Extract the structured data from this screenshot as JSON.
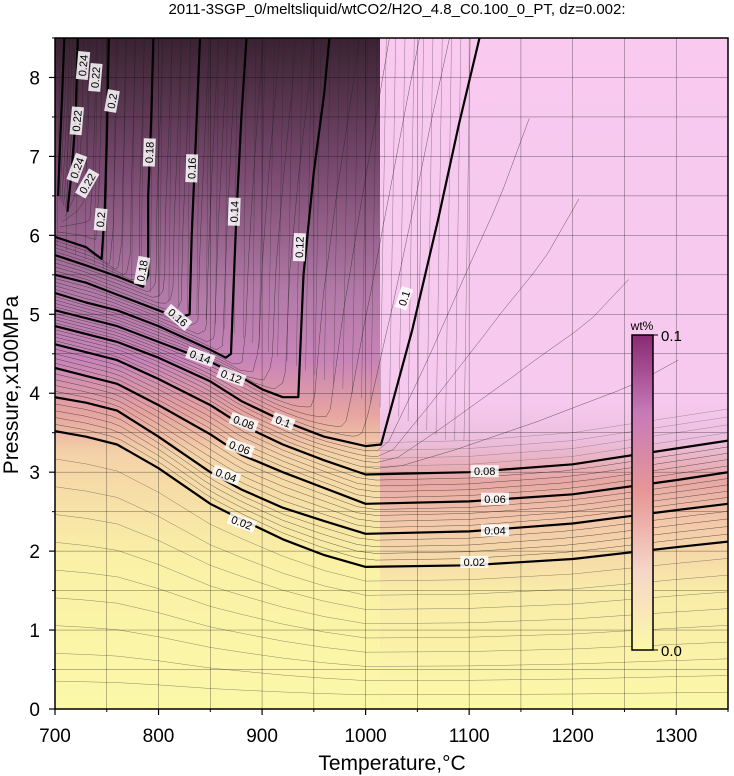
{
  "chart_data": {
    "type": "contour",
    "title": "2011-3SGP_0/meltsliquid/wtCO2/H2O_4.8_C0.100_0_PT, dz=0.002:",
    "xlabel": "Temperature,°C",
    "ylabel": "Pressure,x100MPa",
    "xlim": [
      700,
      1350
    ],
    "ylim": [
      0,
      8.5
    ],
    "xticks": [
      700,
      800,
      900,
      1000,
      1100,
      1200,
      1300
    ],
    "yticks": [
      0,
      1,
      2,
      3,
      4,
      5,
      6,
      7,
      8
    ],
    "grid": true,
    "colorbar": {
      "label": "wt%",
      "min_label": "0.0",
      "max_label": "0.1",
      "range": [
        0,
        0.1
      ],
      "colors": [
        "#fbf8a8",
        "#f6d6c8",
        "#e79796",
        "#c87ab8",
        "#8a2a72"
      ]
    },
    "contours": [
      {
        "level": "0.02",
        "points": [
          [
            700,
            3.52
          ],
          [
            730,
            3.45
          ],
          [
            760,
            3.35
          ],
          [
            800,
            3.05
          ],
          [
            850,
            2.6
          ],
          [
            880,
            2.4
          ],
          [
            920,
            2.15
          ],
          [
            960,
            1.95
          ],
          [
            1000,
            1.8
          ],
          [
            1100,
            1.82
          ],
          [
            1200,
            1.9
          ],
          [
            1300,
            2.05
          ],
          [
            1350,
            2.12
          ]
        ]
      },
      {
        "level": "0.04",
        "points": [
          [
            700,
            3.95
          ],
          [
            730,
            3.88
          ],
          [
            760,
            3.78
          ],
          [
            800,
            3.45
          ],
          [
            850,
            3.0
          ],
          [
            880,
            2.78
          ],
          [
            920,
            2.55
          ],
          [
            960,
            2.38
          ],
          [
            1000,
            2.22
          ],
          [
            1100,
            2.25
          ],
          [
            1200,
            2.35
          ],
          [
            1300,
            2.52
          ],
          [
            1350,
            2.6
          ]
        ]
      },
      {
        "level": "0.06",
        "points": [
          [
            700,
            4.32
          ],
          [
            730,
            4.22
          ],
          [
            760,
            4.12
          ],
          [
            800,
            3.85
          ],
          [
            850,
            3.48
          ],
          [
            880,
            3.22
          ],
          [
            920,
            3.0
          ],
          [
            960,
            2.8
          ],
          [
            1000,
            2.6
          ],
          [
            1100,
            2.63
          ],
          [
            1200,
            2.72
          ],
          [
            1300,
            2.9
          ],
          [
            1350,
            3.0
          ]
        ]
      },
      {
        "level": "0.08",
        "points": [
          [
            700,
            4.62
          ],
          [
            730,
            4.52
          ],
          [
            760,
            4.42
          ],
          [
            800,
            4.18
          ],
          [
            850,
            3.85
          ],
          [
            880,
            3.6
          ],
          [
            920,
            3.35
          ],
          [
            960,
            3.15
          ],
          [
            1000,
            2.97
          ],
          [
            1100,
            3.0
          ],
          [
            1200,
            3.1
          ],
          [
            1300,
            3.3
          ],
          [
            1350,
            3.4
          ]
        ]
      },
      {
        "level": "0.1",
        "points": [
          [
            700,
            4.85
          ],
          [
            730,
            4.75
          ],
          [
            760,
            4.65
          ],
          [
            800,
            4.45
          ],
          [
            850,
            4.15
          ],
          [
            880,
            3.9
          ],
          [
            920,
            3.65
          ],
          [
            960,
            3.45
          ],
          [
            1000,
            3.33
          ],
          [
            1015,
            3.35
          ],
          [
            1045,
            4.8
          ],
          [
            1070,
            6.2
          ],
          [
            1090,
            7.4
          ],
          [
            1110,
            8.5
          ]
        ]
      },
      {
        "level": "0.12",
        "points": [
          [
            700,
            5.05
          ],
          [
            730,
            4.95
          ],
          [
            760,
            4.85
          ],
          [
            800,
            4.65
          ],
          [
            850,
            4.4
          ],
          [
            880,
            4.2
          ],
          [
            900,
            4.05
          ],
          [
            920,
            3.95
          ],
          [
            935,
            3.95
          ],
          [
            940,
            5.5
          ],
          [
            950,
            6.8
          ],
          [
            960,
            7.8
          ],
          [
            965,
            8.5
          ]
        ]
      },
      {
        "level": "0.14",
        "points": [
          [
            700,
            5.27
          ],
          [
            730,
            5.15
          ],
          [
            760,
            5.05
          ],
          [
            800,
            4.85
          ],
          [
            850,
            4.55
          ],
          [
            865,
            4.45
          ],
          [
            870,
            4.5
          ],
          [
            872,
            5.2
          ],
          [
            875,
            6.2
          ],
          [
            880,
            7.5
          ],
          [
            885,
            8.5
          ]
        ]
      },
      {
        "level": "0.16",
        "points": [
          [
            700,
            5.5
          ],
          [
            730,
            5.4
          ],
          [
            760,
            5.25
          ],
          [
            800,
            5.05
          ],
          [
            820,
            4.95
          ],
          [
            830,
            5.0
          ],
          [
            832,
            6.0
          ],
          [
            836,
            7.2
          ],
          [
            840,
            8.5
          ]
        ]
      },
      {
        "level": "0.18",
        "points": [
          [
            700,
            5.75
          ],
          [
            730,
            5.62
          ],
          [
            760,
            5.48
          ],
          [
            785,
            5.35
          ],
          [
            790,
            5.5
          ],
          [
            790,
            6.5
          ],
          [
            793,
            7.5
          ],
          [
            795,
            8.5
          ]
        ]
      },
      {
        "level": "0.2",
        "points": [
          [
            700,
            5.98
          ],
          [
            730,
            5.85
          ],
          [
            745,
            5.7
          ],
          [
            748,
            6.3
          ],
          [
            750,
            7.2
          ],
          [
            752,
            8.5
          ]
        ]
      },
      {
        "level": "0.22",
        "points": [
          [
            712,
            6.3
          ],
          [
            716,
            6.8
          ],
          [
            720,
            7.5
          ],
          [
            722,
            8.5
          ]
        ]
      },
      {
        "level": "0.24",
        "points": [
          [
            703,
            6.5
          ],
          [
            705,
            7.2
          ],
          [
            707,
            7.8
          ],
          [
            709,
            8.5
          ]
        ]
      }
    ],
    "labels": [
      {
        "text": "0.02",
        "x": 880,
        "y": 2.35,
        "angle": 20
      },
      {
        "text": "0.04",
        "x": 865,
        "y": 2.95,
        "angle": 20
      },
      {
        "text": "0.06",
        "x": 878,
        "y": 3.3,
        "angle": 20
      },
      {
        "text": "0.08",
        "x": 882,
        "y": 3.62,
        "angle": 20
      },
      {
        "text": "0.1",
        "x": 920,
        "y": 3.63,
        "angle": 20
      },
      {
        "text": "0.12",
        "x": 870,
        "y": 4.2,
        "angle": 20
      },
      {
        "text": "0.14",
        "x": 840,
        "y": 4.45,
        "angle": 20
      },
      {
        "text": "0.16",
        "x": 818,
        "y": 4.95,
        "angle": 40
      },
      {
        "text": "0.18",
        "x": 785,
        "y": 5.55,
        "angle": -80
      },
      {
        "text": "0.2",
        "x": 745,
        "y": 6.2,
        "angle": -85
      },
      {
        "text": "0.22",
        "x": 732,
        "y": 6.65,
        "angle": -60
      },
      {
        "text": "0.24",
        "x": 722,
        "y": 6.85,
        "angle": -70
      },
      {
        "text": "0.08",
        "x": 1115,
        "y": 3.0,
        "angle": 0
      },
      {
        "text": "0.06",
        "x": 1125,
        "y": 2.65,
        "angle": 0
      },
      {
        "text": "0.04",
        "x": 1125,
        "y": 2.25,
        "angle": 0
      },
      {
        "text": "0.02",
        "x": 1105,
        "y": 1.85,
        "angle": 0
      },
      {
        "text": "0.1",
        "x": 1038,
        "y": 5.2,
        "angle": -72
      },
      {
        "text": "0.12",
        "x": 937,
        "y": 5.85,
        "angle": -88
      },
      {
        "text": "0.14",
        "x": 874,
        "y": 6.3,
        "angle": -88
      },
      {
        "text": "0.16",
        "x": 833,
        "y": 6.85,
        "angle": -88
      },
      {
        "text": "0.18",
        "x": 792,
        "y": 7.05,
        "angle": -88
      },
      {
        "text": "0.2",
        "x": 756,
        "y": 7.7,
        "angle": -80
      },
      {
        "text": "0.22",
        "x": 740,
        "y": 8.0,
        "angle": -85
      },
      {
        "text": "0.22",
        "x": 722,
        "y": 7.45,
        "angle": -85
      },
      {
        "text": "0.24",
        "x": 728,
        "y": 8.15,
        "angle": -85
      }
    ]
  }
}
